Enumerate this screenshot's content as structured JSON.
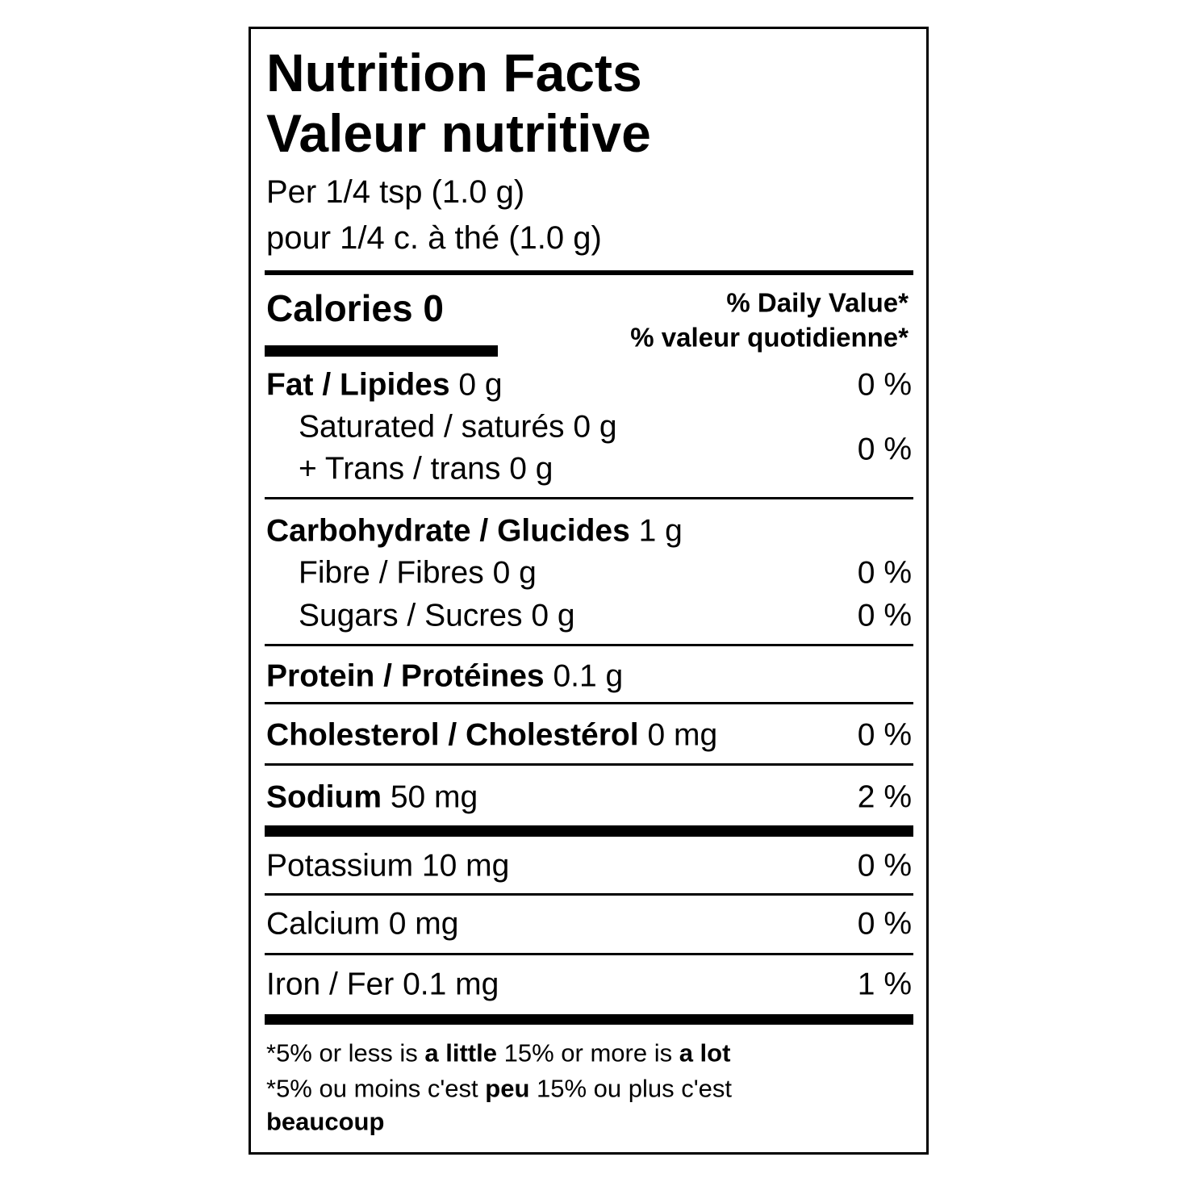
{
  "header": {
    "title": "Nutrition Facts",
    "title_fr": "Valeur nutritive",
    "serving": "Per 1/4 tsp (1.0 g)",
    "serving_fr": "pour 1/4 c. à thé (1.0 g)"
  },
  "calories": {
    "label": "Calories",
    "value": "0"
  },
  "daily_value": {
    "label": "% Daily Value*",
    "label_fr": "% valeur quotidienne*"
  },
  "nutrients": [
    {
      "name": "Fat / Lipides",
      "amount": "0 g",
      "dv": "0 %"
    },
    {
      "name": "Saturated / saturés",
      "amount": "0 g",
      "dv": "0 %"
    },
    {
      "name": "+ Trans / trans",
      "amount": "0 g"
    },
    {
      "name": "Carbohydrate / Glucides",
      "amount": "1 g"
    },
    {
      "name": "Fibre / Fibres",
      "amount": "0 g",
      "dv": "0 %"
    },
    {
      "name": "Sugars / Sucres",
      "amount": "0 g",
      "dv": "0 %"
    },
    {
      "name": "Protein / Protéines",
      "amount": "0.1 g"
    },
    {
      "name": "Cholesterol / Cholestérol",
      "amount": "0 mg",
      "dv": "0 %"
    },
    {
      "name": "Sodium",
      "amount": "50 mg",
      "dv": "2 %"
    },
    {
      "name": "Potassium",
      "amount": "10 mg",
      "dv": "0 %"
    },
    {
      "name": "Calcium",
      "amount": "0 mg",
      "dv": "0 %"
    },
    {
      "name": "Iron / Fer",
      "amount": "0.1 mg",
      "dv": "1 %"
    }
  ],
  "footnote": {
    "en": [
      "*5% or less is ",
      "a little",
      " 15% or more is ",
      "a lot"
    ],
    "fr": [
      "*5% ou moins c'est ",
      "peu",
      " 15% ou plus c'est",
      "beaucoup"
    ]
  }
}
